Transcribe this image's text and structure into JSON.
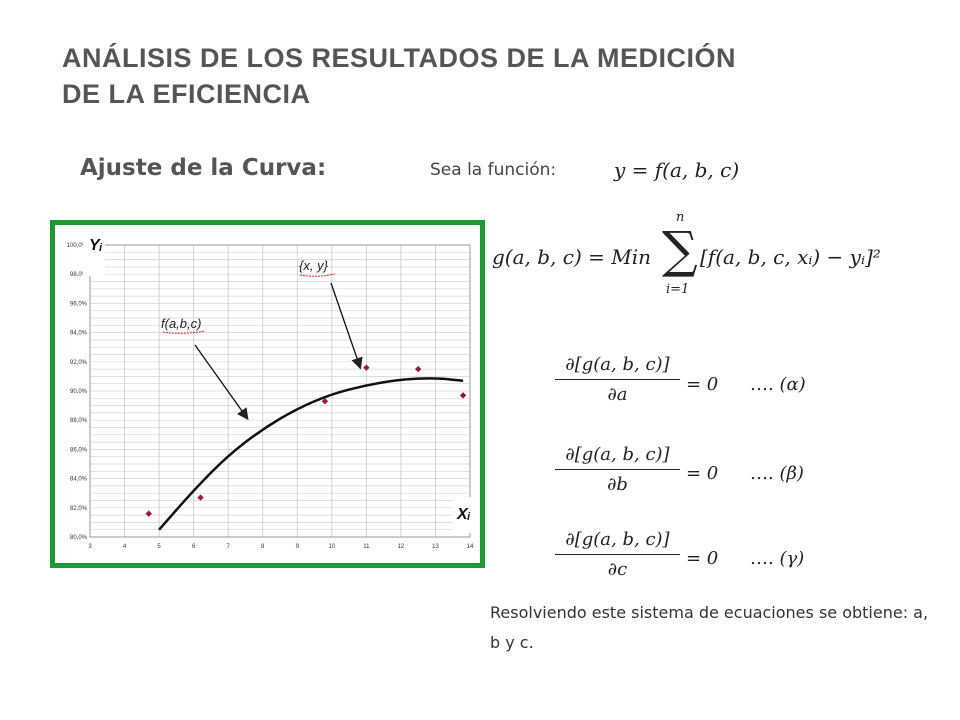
{
  "slide": {
    "title_line1": "ANÁLISIS DE LOS RESULTADOS DE LA MEDICIÓN",
    "title_line2": "DE LA EFICIENCIA",
    "subtitle": "Ajuste de la Curva:",
    "sea_label": "Sea la función:",
    "function_eq": "y = f(a, b, c)",
    "g_lhs": "g(a, b, c) = Min",
    "sum_upper": "n",
    "sum_lower": "i=1",
    "sum_body": "[f(a, b, c, xᵢ) − yᵢ]²",
    "partials": [
      {
        "num": "∂[g(a, b, c)]",
        "den": "∂a",
        "rhs": "= 0",
        "tag": "…. (α)"
      },
      {
        "num": "∂[g(a, b, c)]",
        "den": "∂b",
        "rhs": "= 0",
        "tag": "…. (β)"
      },
      {
        "num": "∂[g(a, b, c)]",
        "den": "∂c",
        "rhs": "= 0",
        "tag": "…. (γ)"
      }
    ],
    "conclusion": "Resolviendo este sistema de ecuaciones se obtiene: a, b y c."
  },
  "chart_data": {
    "type": "scatter",
    "y_axis_title": "Yᵢ",
    "x_axis_title": "Xᵢ",
    "xlim": [
      3,
      14
    ],
    "ylim": [
      80,
      100
    ],
    "x_ticks": [
      "3",
      "4",
      "5",
      "6",
      "7",
      "8",
      "9",
      "10",
      "11",
      "12",
      "13",
      "14"
    ],
    "y_ticks": [
      "80,0%",
      "82,0%",
      "84,0%",
      "86,0%",
      "88,0%",
      "90,0%",
      "92,0%",
      "94,0%",
      "96,0%",
      "98,0%",
      "100,0%"
    ],
    "points": [
      {
        "x": 4.7,
        "y": 81.6
      },
      {
        "x": 6.2,
        "y": 82.7
      },
      {
        "x": 9.8,
        "y": 89.3
      },
      {
        "x": 11.0,
        "y": 91.6
      },
      {
        "x": 12.5,
        "y": 91.5
      },
      {
        "x": 13.8,
        "y": 89.7
      }
    ],
    "curve": [
      {
        "x": 5.0,
        "y": 80.5
      },
      {
        "x": 6.0,
        "y": 83.2
      },
      {
        "x": 7.0,
        "y": 85.6
      },
      {
        "x": 8.0,
        "y": 87.4
      },
      {
        "x": 9.0,
        "y": 88.8
      },
      {
        "x": 10.0,
        "y": 89.8
      },
      {
        "x": 11.0,
        "y": 90.4
      },
      {
        "x": 12.0,
        "y": 90.8
      },
      {
        "x": 13.0,
        "y": 90.9
      },
      {
        "x": 13.8,
        "y": 90.7
      }
    ],
    "annotations": [
      "f(a,b,c)",
      "{x, y}"
    ],
    "grid": true
  }
}
